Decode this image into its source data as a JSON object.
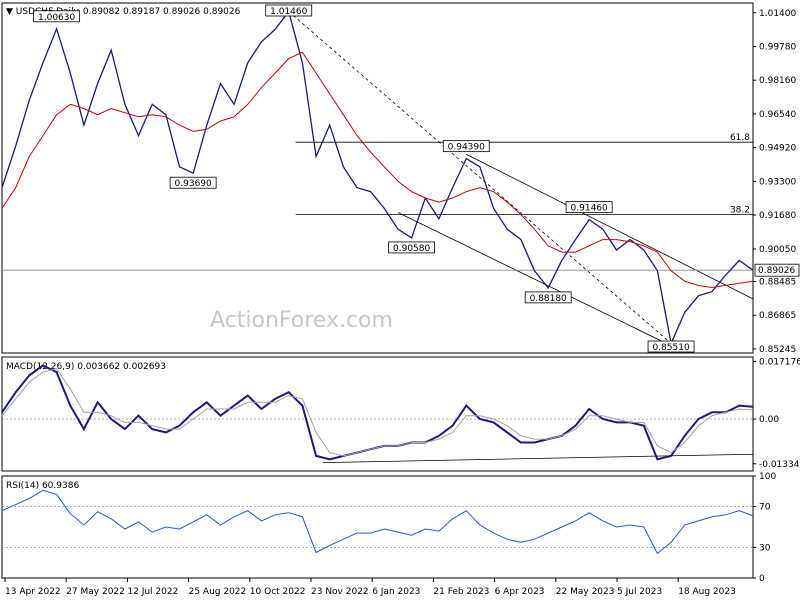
{
  "chart_data": [
    {
      "type": "line",
      "title": "USDCHF,Daily",
      "ohlc_text": "0.89082 0.89187 0.89026 0.89026",
      "last_price": "0.89026",
      "y_ticks": [
        "1.01400",
        "0.99780",
        "0.98160",
        "0.96540",
        "0.94920",
        "0.93300",
        "0.91680",
        "0.90050",
        "0.88485",
        "0.86865",
        "0.85245"
      ],
      "x_ticks": [
        "13 Apr 2022",
        "27 May 2022",
        "12 Jul 2022",
        "25 Aug 2022",
        "10 Oct 2022",
        "23 Nov 2022",
        "6 Jan 2023",
        "21 Feb 2023",
        "6 Apr 2023",
        "22 May 2023",
        "5 Jul 2023",
        "18 Aug 2023"
      ],
      "ylim": [
        0.8505,
        1.0187
      ],
      "annotations": [
        "1.00630",
        "1.01460",
        "0.93690",
        "0.94390",
        "0.90580",
        "0.91460",
        "0.88180",
        "0.85510"
      ],
      "fib_labels": [
        "61.8",
        "38.2"
      ],
      "fib_levels": [
        0.9518,
        0.917
      ],
      "horizontal_line": 0.8903,
      "series": [
        {
          "name": "USDCHF",
          "color": "#1a1a80",
          "values": [
            0.93,
            0.95,
            0.972,
            0.99,
            1.0063,
            0.985,
            0.96,
            0.98,
            0.996,
            0.97,
            0.955,
            0.97,
            0.965,
            0.94,
            0.9369,
            0.96,
            0.98,
            0.97,
            0.99,
            1.0,
            1.006,
            1.0146,
            0.99,
            0.945,
            0.96,
            0.94,
            0.93,
            0.928,
            0.92,
            0.91,
            0.9058,
            0.925,
            0.915,
            0.93,
            0.9439,
            0.94,
            0.92,
            0.91,
            0.905,
            0.89,
            0.8818,
            0.895,
            0.905,
            0.9146,
            0.91,
            0.9,
            0.905,
            0.9,
            0.89,
            0.8551,
            0.87,
            0.878,
            0.88,
            0.888,
            0.895,
            0.8903
          ]
        },
        {
          "name": "MA",
          "color": "#cc0000",
          "values": [
            0.92,
            0.93,
            0.945,
            0.955,
            0.965,
            0.97,
            0.968,
            0.965,
            0.968,
            0.966,
            0.964,
            0.965,
            0.964,
            0.96,
            0.957,
            0.958,
            0.962,
            0.964,
            0.97,
            0.978,
            0.985,
            0.992,
            0.995,
            0.985,
            0.975,
            0.965,
            0.955,
            0.947,
            0.94,
            0.933,
            0.928,
            0.925,
            0.923,
            0.925,
            0.928,
            0.93,
            0.928,
            0.923,
            0.917,
            0.91,
            0.902,
            0.899,
            0.899,
            0.902,
            0.905,
            0.905,
            0.904,
            0.902,
            0.899,
            0.89,
            0.885,
            0.883,
            0.882,
            0.883,
            0.884,
            0.885
          ]
        }
      ]
    },
    {
      "type": "line",
      "title": "MACD(12,26,9) 0.003662 0.002693",
      "y_ticks": [
        "0.017176",
        "0.00",
        "-0.01334"
      ],
      "ylim": [
        -0.0155,
        0.0185
      ],
      "series": [
        {
          "name": "MACD",
          "color": "#1a1a80",
          "values": [
            0.002,
            0.008,
            0.013,
            0.016,
            0.014,
            0.004,
            -0.003,
            0.005,
            0.0,
            -0.003,
            0.001,
            -0.003,
            -0.004,
            -0.002,
            0.002,
            0.005,
            0.001,
            0.004,
            0.007,
            0.003,
            0.006,
            0.008,
            0.004,
            -0.011,
            -0.012,
            -0.011,
            -0.01,
            -0.009,
            -0.008,
            -0.008,
            -0.007,
            -0.007,
            -0.005,
            -0.002,
            0.004,
            0.0,
            -0.001,
            -0.004,
            -0.007,
            -0.007,
            -0.006,
            -0.005,
            -0.002,
            0.003,
            0.0,
            -0.001,
            -0.001,
            -0.002,
            -0.012,
            -0.011,
            -0.005,
            0.0,
            0.002,
            0.002,
            0.004,
            0.003662
          ]
        },
        {
          "name": "Signal",
          "color": "#a0a0a0",
          "values": [
            0.001,
            0.006,
            0.011,
            0.014,
            0.015,
            0.009,
            0.002,
            0.002,
            0.001,
            -0.001,
            -0.001,
            -0.002,
            -0.003,
            -0.003,
            0.0,
            0.003,
            0.003,
            0.003,
            0.005,
            0.005,
            0.005,
            0.007,
            0.006,
            -0.004,
            -0.01,
            -0.011,
            -0.01,
            -0.009,
            -0.008,
            -0.008,
            -0.007,
            -0.007,
            -0.006,
            -0.004,
            0.001,
            0.001,
            0.0,
            -0.002,
            -0.005,
            -0.006,
            -0.006,
            -0.005,
            -0.003,
            0.001,
            0.001,
            0.0,
            -0.001,
            -0.001,
            -0.008,
            -0.01,
            -0.007,
            -0.002,
            0.001,
            0.002,
            0.003,
            0.002693
          ]
        }
      ]
    },
    {
      "type": "line",
      "title": "RSI(14) 60.9386",
      "y_ticks": [
        "100",
        "70",
        "30",
        "0"
      ],
      "ylim": [
        0,
        100
      ],
      "series": [
        {
          "name": "RSI",
          "color": "#1a5ad8",
          "values": [
            66,
            72,
            78,
            86,
            82,
            63,
            52,
            65,
            58,
            48,
            55,
            45,
            50,
            48,
            55,
            62,
            52,
            60,
            66,
            56,
            62,
            64,
            60,
            25,
            32,
            38,
            44,
            44,
            48,
            45,
            42,
            48,
            46,
            58,
            66,
            52,
            44,
            38,
            35,
            38,
            44,
            50,
            56,
            64,
            56,
            50,
            52,
            50,
            24,
            35,
            52,
            56,
            60,
            62,
            66,
            60.9
          ]
        }
      ]
    }
  ],
  "watermark": "ActionForex.com"
}
